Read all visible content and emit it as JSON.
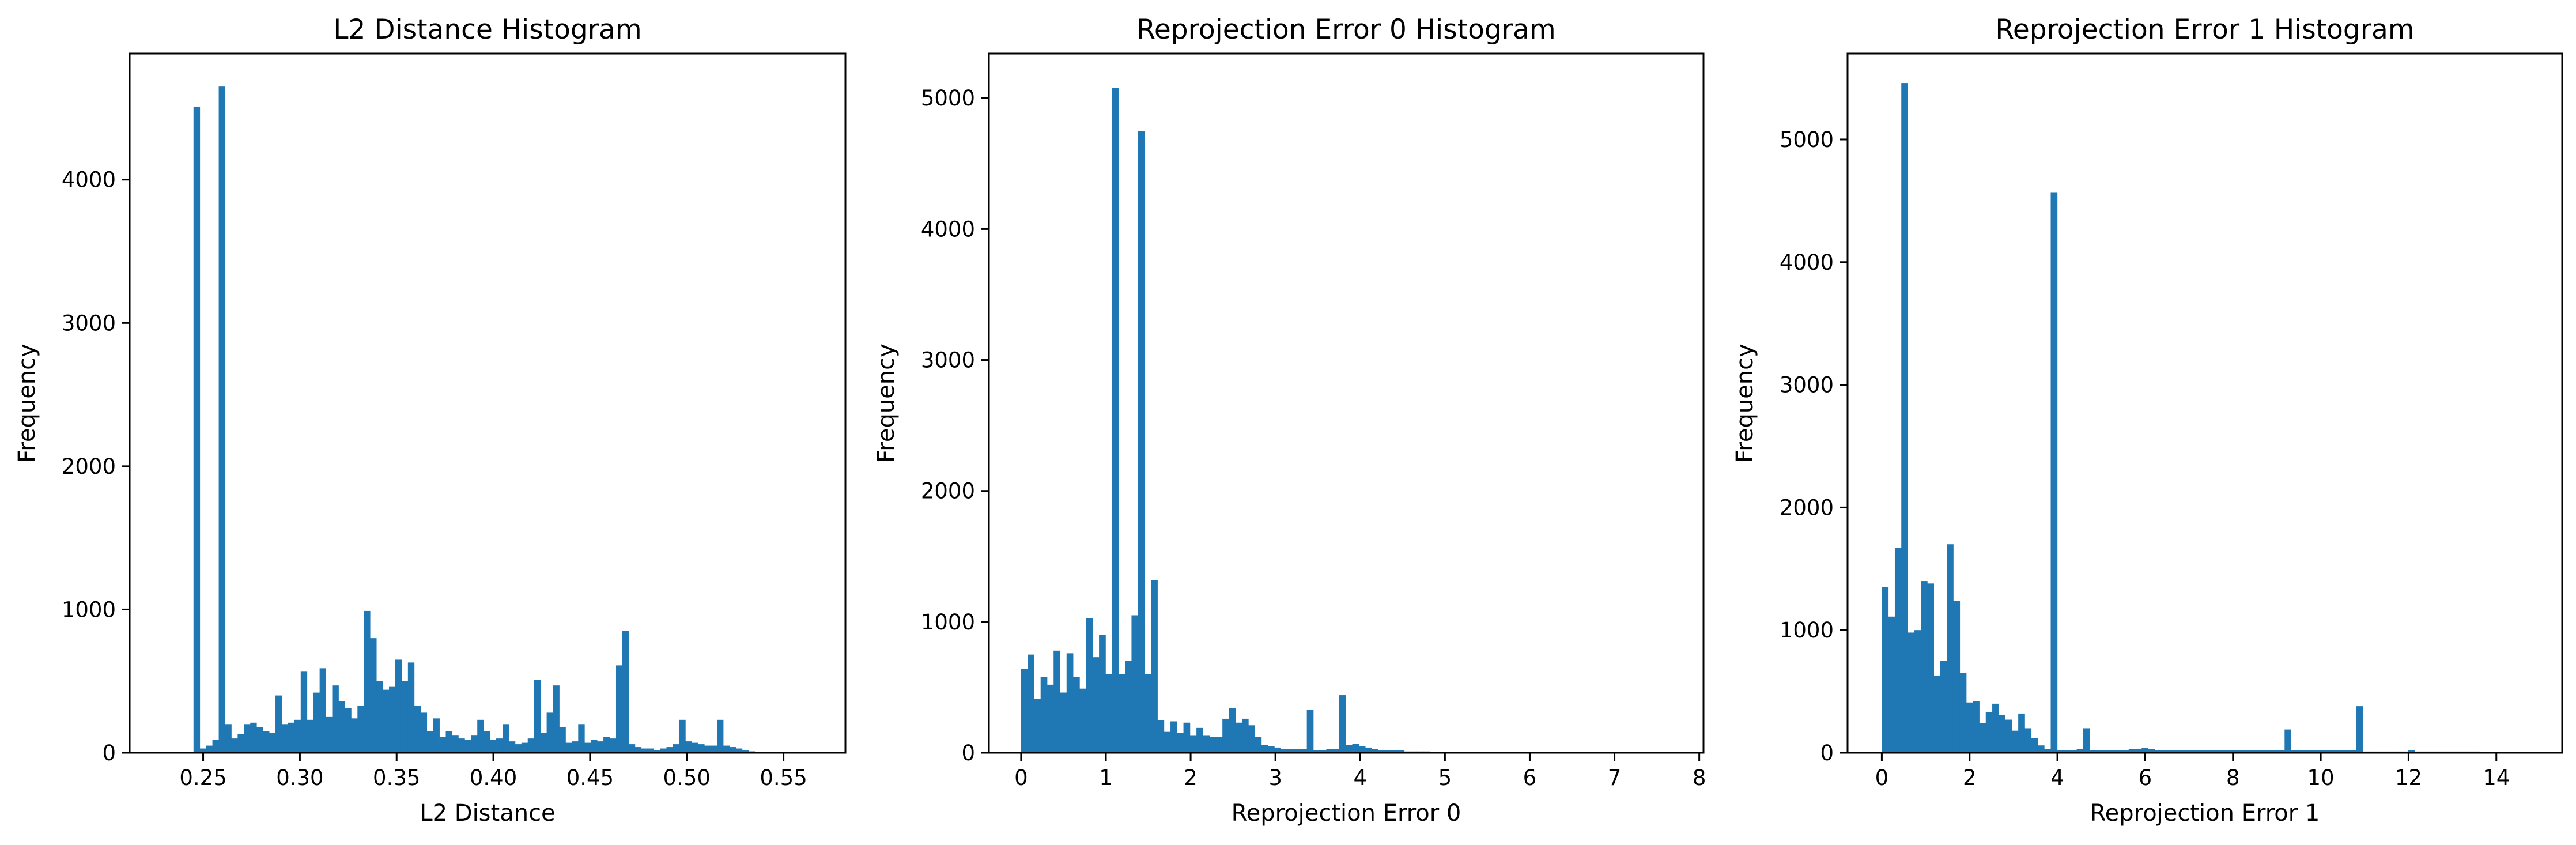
{
  "figure": {
    "background": "#ffffff",
    "bar_color": "#1f77b4"
  },
  "chart_data": [
    {
      "type": "bar",
      "histogram": true,
      "title": "L2 Distance Histogram",
      "xlabel": "L2 Distance",
      "ylabel": "Frequency",
      "xlim": [
        0.212,
        0.582
      ],
      "ylim": [
        0,
        4880
      ],
      "xticks": [
        0.25,
        0.3,
        0.35,
        0.4,
        0.45,
        0.5,
        0.55
      ],
      "xtick_labels": [
        "0.25",
        "0.30",
        "0.35",
        "0.40",
        "0.45",
        "0.50",
        "0.55"
      ],
      "yticks": [
        0,
        1000,
        2000,
        3000,
        4000
      ],
      "ytick_labels": [
        "0",
        "1000",
        "2000",
        "3000",
        "4000"
      ],
      "bin_start": 0.245,
      "bin_width": 0.00326,
      "values": [
        4510,
        30,
        50,
        90,
        4650,
        200,
        100,
        130,
        200,
        210,
        180,
        150,
        140,
        400,
        200,
        210,
        230,
        570,
        230,
        420,
        590,
        250,
        470,
        360,
        310,
        240,
        330,
        990,
        800,
        500,
        440,
        460,
        650,
        500,
        630,
        330,
        280,
        150,
        240,
        110,
        150,
        120,
        100,
        90,
        120,
        230,
        150,
        90,
        100,
        200,
        80,
        60,
        70,
        100,
        510,
        140,
        280,
        470,
        180,
        70,
        80,
        200,
        70,
        90,
        80,
        110,
        100,
        610,
        850,
        60,
        40,
        30,
        30,
        20,
        30,
        40,
        60,
        230,
        80,
        70,
        60,
        50,
        50,
        230,
        50,
        40,
        30,
        20,
        10,
        5
      ]
    },
    {
      "type": "bar",
      "histogram": true,
      "title": "Reprojection Error 0 Histogram",
      "xlabel": "Reprojection Error 0",
      "ylabel": "Frequency",
      "xlim": [
        -0.38,
        8.05
      ],
      "ylim": [
        0,
        5340
      ],
      "xticks": [
        0,
        1,
        2,
        3,
        4,
        5,
        6,
        7,
        8
      ],
      "xtick_labels": [
        "0",
        "1",
        "2",
        "3",
        "4",
        "5",
        "6",
        "7",
        "8"
      ],
      "yticks": [
        0,
        1000,
        2000,
        3000,
        4000,
        5000
      ],
      "ytick_labels": [
        "0",
        "1000",
        "2000",
        "3000",
        "4000",
        "5000"
      ],
      "bin_start": 0.0,
      "bin_width": 0.0766,
      "values": [
        640,
        750,
        410,
        580,
        520,
        780,
        460,
        760,
        580,
        490,
        1030,
        730,
        900,
        600,
        5080,
        600,
        700,
        1050,
        4750,
        600,
        1320,
        250,
        160,
        240,
        150,
        230,
        130,
        190,
        130,
        120,
        120,
        260,
        340,
        230,
        260,
        210,
        120,
        60,
        50,
        40,
        30,
        30,
        30,
        30,
        330,
        20,
        20,
        30,
        30,
        440,
        60,
        70,
        50,
        40,
        30,
        20,
        20,
        20,
        20,
        10,
        10,
        10,
        10,
        5,
        5,
        5,
        5,
        5,
        5,
        5,
        5,
        5,
        5,
        5,
        5,
        5,
        5,
        5,
        5,
        5,
        5,
        5,
        5,
        5,
        5,
        5,
        5,
        5,
        5,
        5,
        5,
        5,
        5,
        5,
        5,
        5,
        5,
        5,
        5,
        5
      ]
    },
    {
      "type": "bar",
      "histogram": true,
      "title": "Reprojection Error 1 Histogram",
      "xlabel": "Reprojection Error 1",
      "ylabel": "Frequency",
      "xlim": [
        -0.78,
        15.5
      ],
      "ylim": [
        0,
        5700
      ],
      "xticks": [
        0,
        2,
        4,
        6,
        8,
        10,
        12,
        14
      ],
      "xtick_labels": [
        "0",
        "2",
        "4",
        "6",
        "8",
        "10",
        "12",
        "14"
      ],
      "yticks": [
        0,
        1000,
        2000,
        3000,
        4000,
        5000
      ],
      "ytick_labels": [
        "0",
        "1000",
        "2000",
        "3000",
        "4000",
        "5000"
      ],
      "bin_start": 0.0,
      "bin_width": 0.148,
      "values": [
        1350,
        1110,
        1670,
        5460,
        980,
        1000,
        1400,
        1380,
        630,
        750,
        1700,
        1240,
        650,
        410,
        420,
        240,
        330,
        400,
        310,
        270,
        180,
        320,
        200,
        120,
        60,
        30,
        4570,
        20,
        20,
        20,
        30,
        200,
        20,
        20,
        20,
        20,
        20,
        20,
        30,
        30,
        40,
        30,
        20,
        20,
        20,
        20,
        20,
        20,
        20,
        20,
        20,
        20,
        20,
        20,
        20,
        20,
        20,
        20,
        20,
        20,
        20,
        20,
        190,
        20,
        20,
        20,
        20,
        20,
        20,
        20,
        20,
        20,
        20,
        380,
        10,
        10,
        10,
        10,
        10,
        10,
        10,
        20,
        10,
        10,
        10,
        10,
        10,
        10,
        10,
        10,
        10,
        10,
        5,
        5,
        5,
        5,
        5,
        5,
        5,
        5
      ]
    }
  ]
}
